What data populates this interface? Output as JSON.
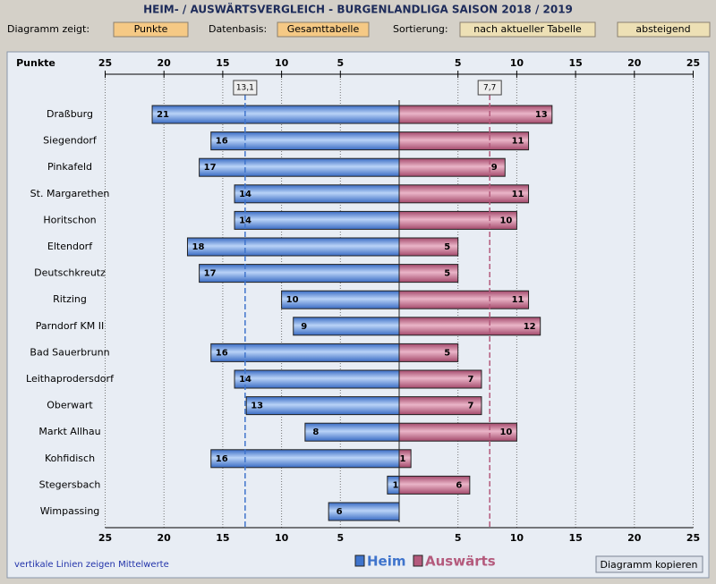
{
  "page": {
    "title": "HEIM- / AUSWÄRTSVERGLEICH  -  BURGENLANDLIGA  SAISON 2018 / 2019",
    "controls": [
      {
        "label": "Diagramm zeigt:",
        "button": "Punkte"
      },
      {
        "label": "Datenbasis:",
        "button": "Gesamttabelle"
      },
      {
        "label": "Sortierung:",
        "button": "nach aktueller Tabelle"
      }
    ],
    "order_button": "absteigend",
    "note": "vertikale Linien zeigen Mittelwerte",
    "copy_button": "Diagramm kopieren"
  },
  "chart_data": {
    "type": "butterfly",
    "axis_label": "Punkte",
    "categories": [
      "Draßburg",
      "Siegendorf",
      "Pinkafeld",
      "St. Margarethen",
      "Horitschon",
      "Eltendorf",
      "Deutschkreutz",
      "Ritzing",
      "Parndorf KM II",
      "Bad Sauerbrunn",
      "Leithaprodersdorf",
      "Oberwart",
      "Markt Allhau",
      "Kohfidisch",
      "Stegersbach",
      "Wimpassing"
    ],
    "series": [
      {
        "name": "Heim",
        "color": "#3f74cc",
        "side": "left",
        "values": [
          21,
          16,
          17,
          14,
          14,
          18,
          17,
          10,
          9,
          16,
          14,
          13,
          8,
          16,
          1,
          6
        ],
        "mean": {
          "value": 13.1,
          "label": "13,1"
        }
      },
      {
        "name": "Auswärts",
        "color": "#b45a7c",
        "side": "right",
        "values": [
          13,
          11,
          9,
          11,
          10,
          5,
          5,
          11,
          12,
          5,
          7,
          7,
          10,
          1,
          6,
          null
        ],
        "mean": {
          "value": 7.7,
          "label": "7,7"
        }
      }
    ],
    "xlim": [
      0,
      25
    ],
    "xticks": [
      5,
      10,
      15,
      20,
      25
    ],
    "grid": true
  }
}
